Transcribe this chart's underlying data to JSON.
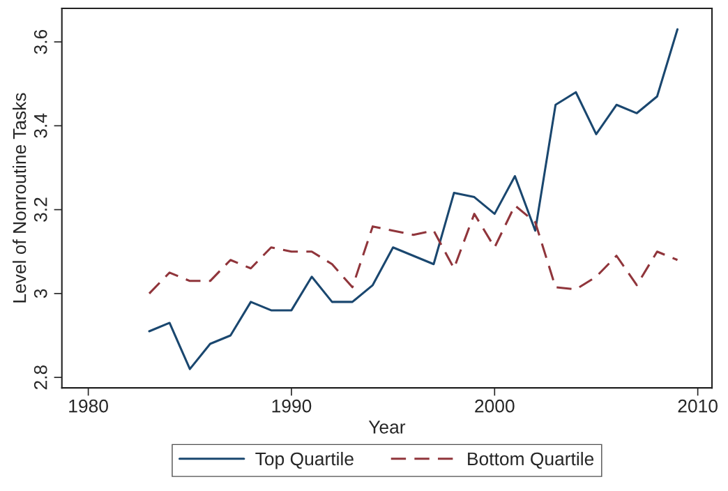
{
  "chart_data": {
    "type": "line",
    "xlabel": "Year",
    "ylabel": "Level of Nonroutine Tasks",
    "x": [
      1983,
      1984,
      1985,
      1986,
      1987,
      1988,
      1989,
      1990,
      1991,
      1992,
      1993,
      1994,
      1995,
      1996,
      1997,
      1998,
      1999,
      2000,
      2001,
      2002,
      2003,
      2004,
      2005,
      2006,
      2007,
      2008,
      2009
    ],
    "series": [
      {
        "name": "Top Quartile",
        "color": "#1a476f",
        "line_style": "solid",
        "values": [
          2.91,
          2.93,
          2.82,
          2.88,
          2.9,
          2.98,
          2.96,
          2.96,
          3.04,
          2.98,
          2.98,
          3.02,
          3.11,
          3.09,
          3.07,
          3.24,
          3.23,
          3.19,
          3.28,
          3.15,
          3.45,
          3.48,
          3.38,
          3.45,
          3.43,
          3.47,
          3.63
        ]
      },
      {
        "name": "Bottom Quartile",
        "color": "#90353b",
        "line_style": "dashed",
        "values": [
          3.0,
          3.05,
          3.03,
          3.03,
          3.08,
          3.06,
          3.11,
          3.1,
          3.1,
          3.07,
          3.015,
          3.16,
          3.15,
          3.14,
          3.15,
          3.06,
          3.19,
          3.11,
          3.21,
          3.17,
          3.015,
          3.01,
          3.04,
          3.09,
          3.02,
          3.1,
          3.08
        ]
      }
    ],
    "xlim": [
      1978.7,
      2010.7
    ],
    "xticks": [
      1980,
      1990,
      2000,
      2010
    ],
    "ylim": [
      2.775,
      3.68
    ],
    "yticks": [
      {
        "value": 2.8,
        "label": "2.8"
      },
      {
        "value": 3.0,
        "label": "3"
      },
      {
        "value": 3.2,
        "label": "3.2"
      },
      {
        "value": 3.4,
        "label": "3.4"
      },
      {
        "value": 3.6,
        "label": "3.6"
      }
    ],
    "grid": false,
    "legend": "bottom",
    "marker": "none"
  }
}
